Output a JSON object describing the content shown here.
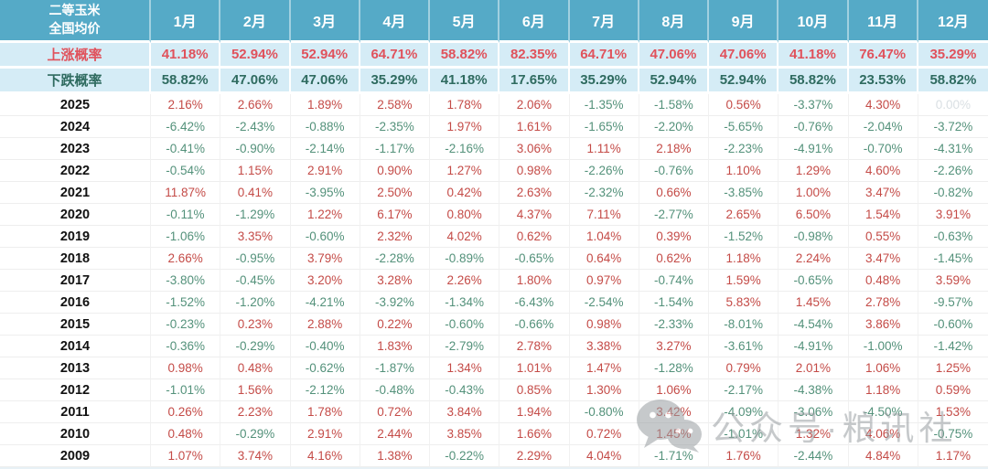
{
  "chart_data": {
    "type": "table",
    "corner_line1": "二等玉米",
    "corner_line2": "全国均价",
    "months": [
      "1月",
      "2月",
      "3月",
      "4月",
      "5月",
      "6月",
      "7月",
      "8月",
      "9月",
      "10月",
      "11月",
      "12月"
    ],
    "probability_rows": [
      {
        "label": "上涨概率",
        "kind": "up",
        "values": [
          "41.18%",
          "52.94%",
          "52.94%",
          "64.71%",
          "58.82%",
          "82.35%",
          "64.71%",
          "47.06%",
          "47.06%",
          "41.18%",
          "76.47%",
          "35.29%"
        ]
      },
      {
        "label": "下跌概率",
        "kind": "down",
        "values": [
          "58.82%",
          "47.06%",
          "47.06%",
          "35.29%",
          "41.18%",
          "17.65%",
          "35.29%",
          "52.94%",
          "52.94%",
          "58.82%",
          "23.53%",
          "58.82%"
        ]
      }
    ],
    "year_rows": [
      {
        "year": "2025",
        "values": [
          "2.16%",
          "2.66%",
          "1.89%",
          "2.58%",
          "1.78%",
          "2.06%",
          "-1.35%",
          "-1.58%",
          "0.56%",
          "-3.37%",
          "4.30%",
          "0.00%"
        ]
      },
      {
        "year": "2024",
        "values": [
          "-6.42%",
          "-2.43%",
          "-0.88%",
          "-2.35%",
          "1.97%",
          "1.61%",
          "-1.65%",
          "-2.20%",
          "-5.65%",
          "-0.76%",
          "-2.04%",
          "-3.72%"
        ]
      },
      {
        "year": "2023",
        "values": [
          "-0.41%",
          "-0.90%",
          "-2.14%",
          "-1.17%",
          "-2.16%",
          "3.06%",
          "1.11%",
          "2.18%",
          "-2.23%",
          "-4.91%",
          "-0.70%",
          "-4.31%"
        ]
      },
      {
        "year": "2022",
        "values": [
          "-0.54%",
          "1.15%",
          "2.91%",
          "0.90%",
          "1.27%",
          "0.98%",
          "-2.26%",
          "-0.76%",
          "1.10%",
          "1.29%",
          "4.60%",
          "-2.26%"
        ]
      },
      {
        "year": "2021",
        "values": [
          "11.87%",
          "0.41%",
          "-3.95%",
          "2.50%",
          "0.42%",
          "2.63%",
          "-2.32%",
          "0.66%",
          "-3.85%",
          "1.00%",
          "3.47%",
          "-0.82%"
        ]
      },
      {
        "year": "2020",
        "values": [
          "-0.11%",
          "-1.29%",
          "1.22%",
          "6.17%",
          "0.80%",
          "4.37%",
          "7.11%",
          "-2.77%",
          "2.65%",
          "6.50%",
          "1.54%",
          "3.91%"
        ]
      },
      {
        "year": "2019",
        "values": [
          "-1.06%",
          "3.35%",
          "-0.60%",
          "2.32%",
          "4.02%",
          "0.62%",
          "1.04%",
          "0.39%",
          "-1.52%",
          "-0.98%",
          "0.55%",
          "-0.63%"
        ]
      },
      {
        "year": "2018",
        "values": [
          "2.66%",
          "-0.95%",
          "3.79%",
          "-2.28%",
          "-0.89%",
          "-0.65%",
          "0.64%",
          "0.62%",
          "1.18%",
          "2.24%",
          "3.47%",
          "-1.45%"
        ]
      },
      {
        "year": "2017",
        "values": [
          "-3.80%",
          "-0.45%",
          "3.20%",
          "3.28%",
          "2.26%",
          "1.80%",
          "0.97%",
          "-0.74%",
          "1.59%",
          "-0.65%",
          "0.48%",
          "3.59%"
        ]
      },
      {
        "year": "2016",
        "values": [
          "-1.52%",
          "-1.20%",
          "-4.21%",
          "-3.92%",
          "-1.34%",
          "-6.43%",
          "-2.54%",
          "-1.54%",
          "5.83%",
          "1.45%",
          "2.78%",
          "-9.57%"
        ]
      },
      {
        "year": "2015",
        "values": [
          "-0.23%",
          "0.23%",
          "2.88%",
          "0.22%",
          "-0.60%",
          "-0.66%",
          "0.98%",
          "-2.33%",
          "-8.01%",
          "-4.54%",
          "3.86%",
          "-0.60%"
        ]
      },
      {
        "year": "2014",
        "values": [
          "-0.36%",
          "-0.29%",
          "-0.40%",
          "1.83%",
          "-2.79%",
          "2.78%",
          "3.38%",
          "3.27%",
          "-3.61%",
          "-4.91%",
          "-1.00%",
          "-1.42%"
        ]
      },
      {
        "year": "2013",
        "values": [
          "0.98%",
          "0.48%",
          "-0.62%",
          "-1.87%",
          "1.34%",
          "1.01%",
          "1.47%",
          "-1.28%",
          "0.79%",
          "2.01%",
          "1.06%",
          "1.25%"
        ]
      },
      {
        "year": "2012",
        "values": [
          "-1.01%",
          "1.56%",
          "-2.12%",
          "-0.48%",
          "-0.43%",
          "0.85%",
          "1.30%",
          "1.06%",
          "-2.17%",
          "-4.38%",
          "1.18%",
          "0.59%"
        ]
      },
      {
        "year": "2011",
        "values": [
          "0.26%",
          "2.23%",
          "1.78%",
          "0.72%",
          "3.84%",
          "1.94%",
          "-0.80%",
          "3.42%",
          "-4.09%",
          "-3.06%",
          "-4.50%",
          "1.53%"
        ]
      },
      {
        "year": "2010",
        "values": [
          "0.48%",
          "-0.29%",
          "2.91%",
          "2.44%",
          "3.85%",
          "1.66%",
          "0.72%",
          "1.45%",
          "-1.01%",
          "1.32%",
          "4.06%",
          "-0.75%"
        ]
      },
      {
        "year": "2009",
        "values": [
          "1.07%",
          "3.74%",
          "4.16%",
          "1.38%",
          "-0.22%",
          "2.29%",
          "4.04%",
          "-1.71%",
          "1.76%",
          "-2.44%",
          "4.84%",
          "1.17%"
        ]
      }
    ]
  },
  "watermark": {
    "text": "公众号·粮讯社",
    "icon": "wechat-icon"
  },
  "colors": {
    "header_bg": "#55aac7",
    "prob_row_bg": "#d5ecf6",
    "up_probability_red": "#e0525c",
    "down_probability_green": "#2f6b60",
    "positive_value_red": "#c44b47",
    "negative_value_green": "#53917a",
    "faded_zero_gray": "#d9dfe3",
    "watermark_gray": "#989ea1"
  }
}
